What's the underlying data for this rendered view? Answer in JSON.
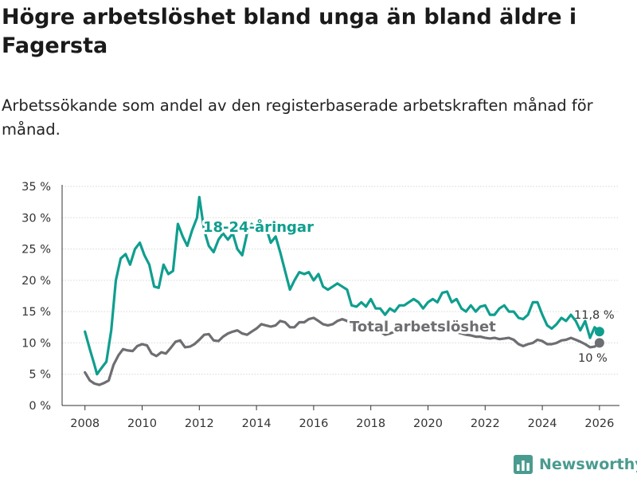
{
  "title": "Högre arbetslöshet bland unga än bland äldre i Fagersta",
  "subtitle": "Arbetssökande som andel av den registerbaserade arbetskraften månad för månad.",
  "brand": {
    "name": "Newsworthy",
    "icon": "bar-chart-logo-icon"
  },
  "colors": {
    "youth": "#0f9e8e",
    "total": "#6e6e72",
    "axis": "#333333",
    "grid": "#d6d6d6"
  },
  "chart_data": {
    "type": "line",
    "x_ticks": [
      "2008",
      "2010",
      "2012",
      "2014",
      "2016",
      "2018",
      "2020",
      "2022",
      "2024",
      "2026"
    ],
    "x_tick_values": [
      2008,
      2010,
      2012,
      2014,
      2016,
      2018,
      2020,
      2022,
      2024,
      2026
    ],
    "y_ticks": [
      "0 %",
      "5 %",
      "10 %",
      "15 %",
      "20 %",
      "25 %",
      "30 %",
      "35 %"
    ],
    "y_tick_values": [
      0,
      5,
      10,
      15,
      20,
      25,
      30,
      35
    ],
    "xlim": [
      2007.2,
      2026.7
    ],
    "ylim": [
      0,
      35
    ],
    "series": [
      {
        "name": "18-24-åringar",
        "label": "18-24-åringar",
        "end_label": "11,8 %",
        "color_key": "youth",
        "points": [
          [
            2008.0,
            11.8
          ],
          [
            2008.17,
            9.0
          ],
          [
            2008.33,
            6.5
          ],
          [
            2008.42,
            5.0
          ],
          [
            2008.58,
            6.0
          ],
          [
            2008.75,
            7.0
          ],
          [
            2008.92,
            12.0
          ],
          [
            2009.08,
            20.0
          ],
          [
            2009.25,
            23.5
          ],
          [
            2009.42,
            24.2
          ],
          [
            2009.58,
            22.5
          ],
          [
            2009.75,
            25.0
          ],
          [
            2009.92,
            26.0
          ],
          [
            2010.08,
            24.0
          ],
          [
            2010.25,
            22.5
          ],
          [
            2010.42,
            19.0
          ],
          [
            2010.58,
            18.8
          ],
          [
            2010.75,
            22.5
          ],
          [
            2010.92,
            21.0
          ],
          [
            2011.08,
            21.5
          ],
          [
            2011.25,
            29.0
          ],
          [
            2011.42,
            27.0
          ],
          [
            2011.58,
            25.5
          ],
          [
            2011.75,
            28.0
          ],
          [
            2011.92,
            30.0
          ],
          [
            2012.0,
            33.3
          ],
          [
            2012.17,
            28.0
          ],
          [
            2012.33,
            25.5
          ],
          [
            2012.5,
            24.5
          ],
          [
            2012.67,
            26.5
          ],
          [
            2012.83,
            27.5
          ],
          [
            2013.0,
            26.5
          ],
          [
            2013.17,
            27.5
          ],
          [
            2013.33,
            25.0
          ],
          [
            2013.5,
            24.0
          ],
          [
            2013.67,
            27.5
          ],
          [
            2013.83,
            29.0
          ],
          [
            2014.0,
            28.0
          ],
          [
            2014.17,
            29.0
          ],
          [
            2014.33,
            28.5
          ],
          [
            2014.5,
            26.0
          ],
          [
            2014.67,
            27.0
          ],
          [
            2014.83,
            24.5
          ],
          [
            2015.0,
            21.5
          ],
          [
            2015.17,
            18.5
          ],
          [
            2015.33,
            20.0
          ],
          [
            2015.5,
            21.3
          ],
          [
            2015.67,
            21.0
          ],
          [
            2015.83,
            21.3
          ],
          [
            2016.0,
            20.0
          ],
          [
            2016.17,
            21.0
          ],
          [
            2016.33,
            19.0
          ],
          [
            2016.5,
            18.5
          ],
          [
            2016.67,
            19.0
          ],
          [
            2016.83,
            19.5
          ],
          [
            2017.0,
            19.0
          ],
          [
            2017.17,
            18.5
          ],
          [
            2017.33,
            16.0
          ],
          [
            2017.5,
            15.8
          ],
          [
            2017.67,
            16.5
          ],
          [
            2017.83,
            15.8
          ],
          [
            2018.0,
            17.0
          ],
          [
            2018.17,
            15.5
          ],
          [
            2018.33,
            15.5
          ],
          [
            2018.5,
            14.5
          ],
          [
            2018.67,
            15.5
          ],
          [
            2018.83,
            15.0
          ],
          [
            2019.0,
            16.0
          ],
          [
            2019.17,
            16.0
          ],
          [
            2019.33,
            16.5
          ],
          [
            2019.5,
            17.0
          ],
          [
            2019.67,
            16.5
          ],
          [
            2019.83,
            15.5
          ],
          [
            2020.0,
            16.5
          ],
          [
            2020.17,
            17.0
          ],
          [
            2020.33,
            16.5
          ],
          [
            2020.5,
            18.0
          ],
          [
            2020.67,
            18.2
          ],
          [
            2020.83,
            16.5
          ],
          [
            2021.0,
            17.0
          ],
          [
            2021.17,
            15.5
          ],
          [
            2021.33,
            15.0
          ],
          [
            2021.5,
            16.0
          ],
          [
            2021.67,
            15.0
          ],
          [
            2021.83,
            15.8
          ],
          [
            2022.0,
            16.0
          ],
          [
            2022.17,
            14.5
          ],
          [
            2022.33,
            14.5
          ],
          [
            2022.5,
            15.5
          ],
          [
            2022.67,
            16.0
          ],
          [
            2022.83,
            15.0
          ],
          [
            2023.0,
            15.0
          ],
          [
            2023.17,
            14.0
          ],
          [
            2023.33,
            13.8
          ],
          [
            2023.5,
            14.5
          ],
          [
            2023.67,
            16.5
          ],
          [
            2023.83,
            16.5
          ],
          [
            2024.0,
            14.5
          ],
          [
            2024.17,
            12.8
          ],
          [
            2024.33,
            12.3
          ],
          [
            2024.5,
            13.0
          ],
          [
            2024.67,
            14.0
          ],
          [
            2024.83,
            13.5
          ],
          [
            2025.0,
            14.5
          ],
          [
            2025.17,
            13.5
          ],
          [
            2025.33,
            12.0
          ],
          [
            2025.5,
            13.5
          ],
          [
            2025.67,
            10.8
          ],
          [
            2025.83,
            12.5
          ],
          [
            2026.0,
            11.8
          ]
        ]
      },
      {
        "name": "Total arbetslöshet",
        "label": "Total arbetslöshet",
        "end_label": "10 %",
        "color_key": "total",
        "points": [
          [
            2008.0,
            5.3
          ],
          [
            2008.17,
            4.0
          ],
          [
            2008.33,
            3.5
          ],
          [
            2008.5,
            3.3
          ],
          [
            2008.67,
            3.6
          ],
          [
            2008.83,
            4.0
          ],
          [
            2009.0,
            6.5
          ],
          [
            2009.17,
            8.0
          ],
          [
            2009.33,
            9.0
          ],
          [
            2009.5,
            8.8
          ],
          [
            2009.67,
            8.7
          ],
          [
            2009.83,
            9.5
          ],
          [
            2010.0,
            9.8
          ],
          [
            2010.17,
            9.6
          ],
          [
            2010.33,
            8.3
          ],
          [
            2010.5,
            7.9
          ],
          [
            2010.67,
            8.5
          ],
          [
            2010.83,
            8.3
          ],
          [
            2011.0,
            9.2
          ],
          [
            2011.17,
            10.2
          ],
          [
            2011.33,
            10.4
          ],
          [
            2011.5,
            9.3
          ],
          [
            2011.67,
            9.4
          ],
          [
            2011.83,
            9.8
          ],
          [
            2012.0,
            10.5
          ],
          [
            2012.17,
            11.3
          ],
          [
            2012.33,
            11.4
          ],
          [
            2012.5,
            10.4
          ],
          [
            2012.67,
            10.3
          ],
          [
            2012.83,
            11.0
          ],
          [
            2013.0,
            11.5
          ],
          [
            2013.17,
            11.8
          ],
          [
            2013.33,
            12.0
          ],
          [
            2013.5,
            11.5
          ],
          [
            2013.67,
            11.3
          ],
          [
            2013.83,
            11.8
          ],
          [
            2014.0,
            12.3
          ],
          [
            2014.17,
            13.0
          ],
          [
            2014.33,
            12.8
          ],
          [
            2014.5,
            12.6
          ],
          [
            2014.67,
            12.8
          ],
          [
            2014.83,
            13.5
          ],
          [
            2015.0,
            13.3
          ],
          [
            2015.17,
            12.5
          ],
          [
            2015.33,
            12.5
          ],
          [
            2015.5,
            13.3
          ],
          [
            2015.67,
            13.3
          ],
          [
            2015.83,
            13.8
          ],
          [
            2016.0,
            14.0
          ],
          [
            2016.17,
            13.5
          ],
          [
            2016.33,
            13.0
          ],
          [
            2016.5,
            12.8
          ],
          [
            2016.67,
            13.0
          ],
          [
            2016.83,
            13.5
          ],
          [
            2017.0,
            13.8
          ],
          [
            2017.17,
            13.5
          ],
          [
            2017.33,
            12.8
          ],
          [
            2017.5,
            12.5
          ],
          [
            2017.67,
            12.5
          ],
          [
            2017.83,
            12.3
          ],
          [
            2018.0,
            12.0
          ],
          [
            2018.17,
            12.0
          ],
          [
            2018.33,
            11.8
          ],
          [
            2018.5,
            11.3
          ],
          [
            2018.67,
            11.5
          ],
          [
            2018.83,
            11.8
          ],
          [
            2019.0,
            12.0
          ],
          [
            2019.17,
            12.0
          ],
          [
            2019.33,
            12.0
          ],
          [
            2019.5,
            12.2
          ],
          [
            2019.67,
            12.0
          ],
          [
            2019.83,
            11.8
          ],
          [
            2020.0,
            12.0
          ],
          [
            2020.17,
            12.2
          ],
          [
            2020.33,
            12.0
          ],
          [
            2020.5,
            12.3
          ],
          [
            2020.67,
            12.0
          ],
          [
            2020.83,
            11.8
          ],
          [
            2021.0,
            11.7
          ],
          [
            2021.17,
            11.5
          ],
          [
            2021.33,
            11.3
          ],
          [
            2021.5,
            11.2
          ],
          [
            2021.67,
            11.0
          ],
          [
            2021.83,
            11.0
          ],
          [
            2022.0,
            10.8
          ],
          [
            2022.17,
            10.7
          ],
          [
            2022.33,
            10.8
          ],
          [
            2022.5,
            10.6
          ],
          [
            2022.67,
            10.7
          ],
          [
            2022.83,
            10.8
          ],
          [
            2023.0,
            10.5
          ],
          [
            2023.17,
            9.8
          ],
          [
            2023.33,
            9.5
          ],
          [
            2023.5,
            9.8
          ],
          [
            2023.67,
            10.0
          ],
          [
            2023.83,
            10.5
          ],
          [
            2024.0,
            10.3
          ],
          [
            2024.17,
            9.8
          ],
          [
            2024.33,
            9.8
          ],
          [
            2024.5,
            10.0
          ],
          [
            2024.67,
            10.4
          ],
          [
            2024.83,
            10.5
          ],
          [
            2025.0,
            10.8
          ],
          [
            2025.17,
            10.5
          ],
          [
            2025.33,
            10.2
          ],
          [
            2025.5,
            9.8
          ],
          [
            2025.67,
            9.3
          ],
          [
            2025.83,
            9.4
          ],
          [
            2026.0,
            10.0
          ]
        ]
      }
    ]
  }
}
